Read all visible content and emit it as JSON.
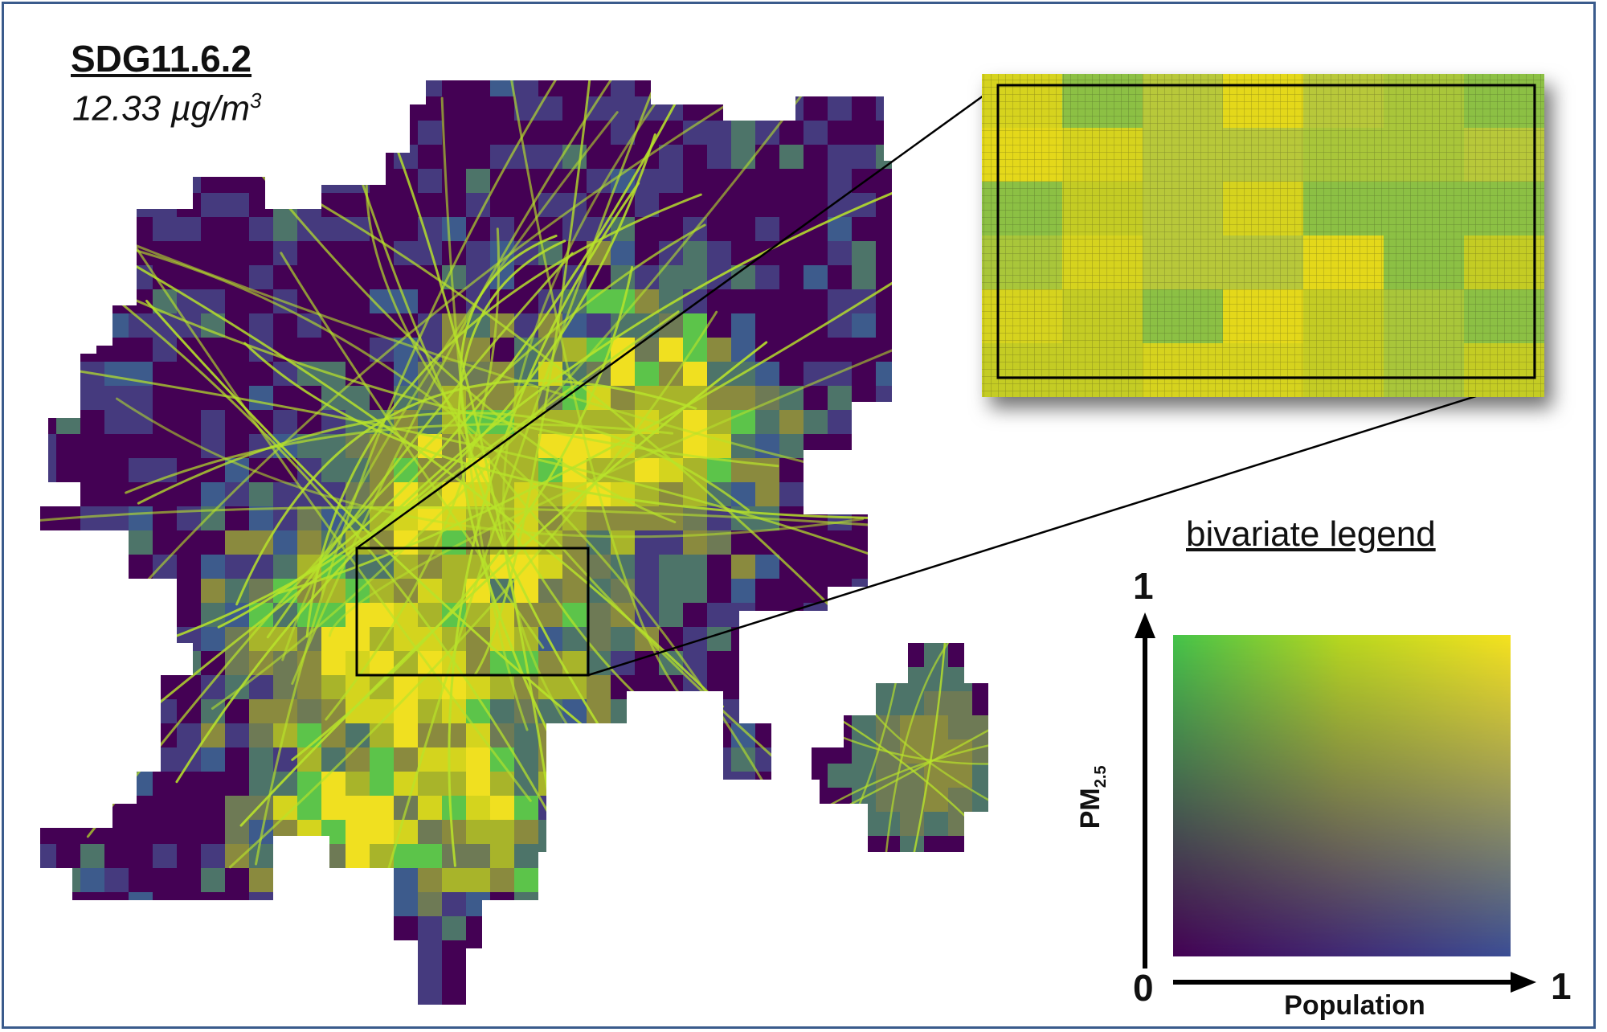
{
  "title": "SDG11.6.2",
  "value_text": "12.33 µg/m",
  "value_superscript": "3",
  "legend": {
    "title": "bivariate legend",
    "y_max_label": "1",
    "origin_label": "0",
    "x_max_label": "1",
    "x_axis_label": "Population",
    "y_axis_label_main": "PM",
    "y_axis_label_sub": "2.5",
    "x_range": [
      0,
      1
    ],
    "y_range": [
      0,
      1
    ],
    "corner_colors": {
      "low_population_low_pm": "#440154",
      "high_population_low_pm": "#3b4e95",
      "low_population_high_pm": "#44c44a",
      "high_population_high_pm": "#f6e21e"
    }
  },
  "map": {
    "palette": [
      "#440154",
      "#453a7e",
      "#3d5b8c",
      "#4d7469",
      "#6e7a55",
      "#8a8a3e",
      "#a8b42a",
      "#d4d41e",
      "#f0e020",
      "#5cc44a"
    ],
    "road_color": "#b8e32a"
  }
}
